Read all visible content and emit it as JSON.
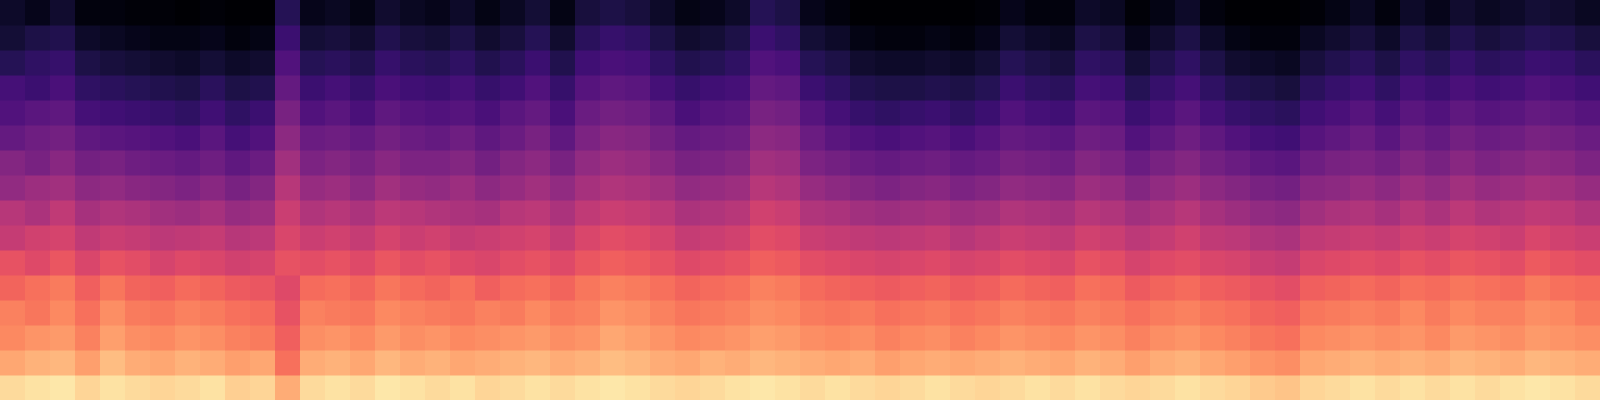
{
  "chart_data": {
    "type": "heatmap",
    "color": "magma",
    "tick_labels": false,
    "zlim": [
      -80,
      0
    ],
    "cells": [
      [
        -6,
        -15,
        -20,
        -21,
        -26,
        -30,
        -37,
        -40,
        -47,
        -50,
        -56,
        -60,
        -62,
        -68,
        -72,
        -74
      ],
      [
        -5,
        -13,
        -18,
        -23,
        -24,
        -32,
        -35,
        -42,
        -45,
        -52,
        -54,
        -58,
        -64,
        -66,
        -70,
        -76
      ],
      [
        -4,
        -12,
        -17,
        -20,
        -22,
        -29,
        -34,
        -38,
        -44,
        -49,
        -53,
        -57,
        -61,
        -65,
        -69,
        -73
      ],
      [
        -7,
        -16,
        -21,
        -24,
        -27,
        -33,
        -38,
        -43,
        -48,
        -53,
        -57,
        -62,
        -66,
        -70,
        -74,
        -78
      ],
      [
        -5,
        -11,
        -16,
        -19,
        -23,
        -30,
        -36,
        -41,
        -47,
        -52,
        -58,
        -63,
        -67,
        -71,
        -75,
        -78
      ],
      [
        -6,
        -14,
        -19,
        -22,
        -26,
        -31,
        -37,
        -42,
        -49,
        -54,
        -59,
        -64,
        -68,
        -72,
        -76,
        -79
      ],
      [
        -7,
        -15,
        -20,
        -23,
        -27,
        -34,
        -39,
        -44,
        -50,
        -55,
        -60,
        -65,
        -69,
        -73,
        -77,
        -79
      ],
      [
        -6,
        -13,
        -18,
        -21,
        -25,
        -32,
        -38,
        -45,
        -51,
        -56,
        -61,
        -66,
        -70,
        -74,
        -77,
        -80
      ],
      [
        -5,
        -14,
        -19,
        -22,
        -26,
        -33,
        -37,
        -43,
        -49,
        -54,
        -58,
        -63,
        -67,
        -72,
        -76,
        -79
      ],
      [
        -8,
        -16,
        -21,
        -24,
        -28,
        -35,
        -40,
        -46,
        -52,
        -57,
        -62,
        -66,
        -70,
        -74,
        -78,
        -80
      ],
      [
        -7,
        -15,
        -22,
        -25,
        -29,
        -34,
        -39,
        -45,
        -50,
        -55,
        -60,
        -64,
        -69,
        -73,
        -77,
        -80
      ],
      [
        -14,
        -24,
        -27,
        -30,
        -32,
        -30,
        -33,
        -36,
        -40,
        -44,
        -48,
        -52,
        -56,
        -60,
        -64,
        -68
      ],
      [
        -6,
        -14,
        -19,
        -21,
        -25,
        -31,
        -36,
        -41,
        -46,
        -51,
        -55,
        -60,
        -64,
        -68,
        -72,
        -76
      ],
      [
        -5,
        -13,
        -18,
        -22,
        -24,
        -30,
        -35,
        -40,
        -45,
        -50,
        -54,
        -58,
        -62,
        -67,
        -71,
        -75
      ],
      [
        -6,
        -15,
        -20,
        -23,
        -26,
        -32,
        -37,
        -42,
        -48,
        -52,
        -56,
        -61,
        -65,
        -69,
        -73,
        -77
      ],
      [
        -4,
        -12,
        -17,
        -20,
        -23,
        -29,
        -34,
        -39,
        -44,
        -49,
        -53,
        -57,
        -61,
        -65,
        -69,
        -73
      ],
      [
        -5,
        -14,
        -19,
        -21,
        -25,
        -31,
        -36,
        -40,
        -46,
        -51,
        -55,
        -59,
        -63,
        -67,
        -71,
        -75
      ],
      [
        -6,
        -13,
        -18,
        -22,
        -26,
        -30,
        -35,
        -41,
        -47,
        -51,
        -56,
        -60,
        -64,
        -68,
        -72,
        -76
      ],
      [
        -5,
        -15,
        -20,
        -23,
        -24,
        -32,
        -37,
        -42,
        -45,
        -50,
        -54,
        -59,
        -62,
        -66,
        -70,
        -74
      ],
      [
        -7,
        -14,
        -19,
        -21,
        -27,
        -33,
        -36,
        -43,
        -48,
        -53,
        -57,
        -61,
        -65,
        -69,
        -73,
        -77
      ],
      [
        -6,
        -13,
        -18,
        -22,
        -25,
        -31,
        -35,
        -40,
        -46,
        -50,
        -55,
        -58,
        -63,
        -67,
        -71,
        -75
      ],
      [
        -5,
        -12,
        -17,
        -20,
        -24,
        -30,
        -34,
        -39,
        -44,
        -48,
        -52,
        -56,
        -60,
        -64,
        -68,
        -72
      ],
      [
        -6,
        -14,
        -19,
        -22,
        -26,
        -32,
        -37,
        -42,
        -47,
        -52,
        -57,
        -61,
        -65,
        -69,
        -73,
        -77
      ],
      [
        -5,
        -13,
        -18,
        -21,
        -23,
        -29,
        -33,
        -38,
        -43,
        -47,
        -51,
        -55,
        -59,
        -63,
        -67,
        -71
      ],
      [
        -4,
        -11,
        -15,
        -18,
        -21,
        -27,
        -31,
        -36,
        -41,
        -45,
        -49,
        -53,
        -57,
        -61,
        -65,
        -70
      ],
      [
        -5,
        -12,
        -16,
        -19,
        -22,
        -28,
        -32,
        -37,
        -42,
        -46,
        -50,
        -54,
        -58,
        -62,
        -66,
        -71
      ],
      [
        -6,
        -14,
        -18,
        -21,
        -24,
        -30,
        -34,
        -39,
        -44,
        -49,
        -53,
        -57,
        -62,
        -66,
        -70,
        -74
      ],
      [
        -7,
        -15,
        -20,
        -23,
        -26,
        -32,
        -37,
        -42,
        -47,
        -52,
        -56,
        -61,
        -65,
        -69,
        -73,
        -77
      ],
      [
        -6,
        -13,
        -19,
        -22,
        -25,
        -31,
        -36,
        -41,
        -46,
        -51,
        -55,
        -59,
        -63,
        -68,
        -72,
        -76
      ],
      [
        -5,
        -14,
        -18,
        -21,
        -24,
        -30,
        -35,
        -40,
        -45,
        -50,
        -54,
        -58,
        -62,
        -66,
        -70,
        -74
      ],
      [
        -4,
        -12,
        -16,
        -19,
        -21,
        -27,
        -31,
        -35,
        -40,
        -44,
        -48,
        -52,
        -56,
        -60,
        -64,
        -68
      ],
      [
        -5,
        -13,
        -17,
        -20,
        -22,
        -28,
        -32,
        -36,
        -41,
        -45,
        -49,
        -53,
        -57,
        -61,
        -66,
        -70
      ],
      [
        -6,
        -14,
        -19,
        -22,
        -25,
        -31,
        -36,
        -41,
        -46,
        -51,
        -55,
        -59,
        -64,
        -68,
        -72,
        -76
      ],
      [
        -5,
        -15,
        -20,
        -23,
        -26,
        -32,
        -37,
        -42,
        -48,
        -53,
        -58,
        -62,
        -66,
        -70,
        -74,
        -78
      ],
      [
        -6,
        -14,
        -19,
        -22,
        -27,
        -33,
        -38,
        -44,
        -50,
        -55,
        -60,
        -65,
        -69,
        -73,
        -77,
        -80
      ],
      [
        -7,
        -16,
        -21,
        -24,
        -28,
        -34,
        -39,
        -45,
        -51,
        -56,
        -61,
        -66,
        -70,
        -74,
        -78,
        -80
      ],
      [
        -6,
        -15,
        -20,
        -23,
        -27,
        -33,
        -38,
        -44,
        -50,
        -55,
        -60,
        -65,
        -70,
        -74,
        -78,
        -80
      ],
      [
        -5,
        -14,
        -19,
        -22,
        -26,
        -32,
        -37,
        -43,
        -49,
        -54,
        -59,
        -64,
        -69,
        -73,
        -77,
        -80
      ],
      [
        -6,
        -15,
        -21,
        -24,
        -28,
        -34,
        -40,
        -45,
        -51,
        -56,
        -61,
        -66,
        -70,
        -74,
        -78,
        -80
      ],
      [
        -7,
        -14,
        -20,
        -23,
        -27,
        -33,
        -38,
        -44,
        -50,
        -55,
        -59,
        -64,
        -68,
        -72,
        -76,
        -79
      ],
      [
        -6,
        -13,
        -18,
        -21,
        -25,
        -31,
        -36,
        -41,
        -47,
        -52,
        -56,
        -60,
        -64,
        -68,
        -72,
        -76
      ],
      [
        -5,
        -14,
        -19,
        -22,
        -26,
        -32,
        -37,
        -42,
        -48,
        -53,
        -57,
        -62,
        -66,
        -70,
        -74,
        -78
      ],
      [
        -6,
        -15,
        -20,
        -23,
        -27,
        -33,
        -38,
        -43,
        -49,
        -54,
        -58,
        -63,
        -67,
        -71,
        -75,
        -78
      ],
      [
        -5,
        -13,
        -18,
        -21,
        -24,
        -30,
        -35,
        -40,
        -45,
        -50,
        -54,
        -58,
        -62,
        -66,
        -70,
        -74
      ],
      [
        -6,
        -14,
        -19,
        -22,
        -25,
        -31,
        -36,
        -41,
        -46,
        -51,
        -55,
        -59,
        -63,
        -67,
        -71,
        -75
      ],
      [
        -7,
        -16,
        -21,
        -24,
        -28,
        -34,
        -39,
        -44,
        -50,
        -55,
        -60,
        -64,
        -68,
        -72,
        -76,
        -79
      ],
      [
        -6,
        -14,
        -19,
        -22,
        -26,
        -32,
        -37,
        -42,
        -47,
        -52,
        -57,
        -61,
        -65,
        -69,
        -73,
        -77
      ],
      [
        -5,
        -13,
        -18,
        -21,
        -25,
        -31,
        -35,
        -40,
        -45,
        -50,
        -54,
        -58,
        -62,
        -66,
        -70,
        -74
      ],
      [
        -6,
        -15,
        -20,
        -23,
        -27,
        -33,
        -38,
        -43,
        -48,
        -53,
        -57,
        -62,
        -66,
        -70,
        -74,
        -78
      ],
      [
        -7,
        -16,
        -21,
        -24,
        -28,
        -34,
        -39,
        -45,
        -50,
        -55,
        -60,
        -65,
        -69,
        -73,
        -77,
        -80
      ],
      [
        -9,
        -18,
        -23,
        -26,
        -30,
        -36,
        -41,
        -47,
        -52,
        -57,
        -62,
        -66,
        -70,
        -74,
        -78,
        -80
      ],
      [
        -10,
        -19,
        -24,
        -27,
        -31,
        -37,
        -42,
        -48,
        -53,
        -58,
        -63,
        -67,
        -71,
        -75,
        -78,
        -80
      ],
      [
        -7,
        -15,
        -20,
        -23,
        -27,
        -33,
        -38,
        -44,
        -49,
        -54,
        -59,
        -63,
        -67,
        -71,
        -75,
        -79
      ],
      [
        -6,
        -14,
        -19,
        -22,
        -26,
        -32,
        -37,
        -42,
        -48,
        -52,
        -57,
        -61,
        -65,
        -69,
        -73,
        -77
      ],
      [
        -5,
        -13,
        -18,
        -21,
        -25,
        -31,
        -36,
        -41,
        -46,
        -51,
        -55,
        -59,
        -63,
        -67,
        -71,
        -75
      ],
      [
        -6,
        -14,
        -19,
        -22,
        -26,
        -32,
        -37,
        -43,
        -48,
        -53,
        -58,
        -62,
        -66,
        -70,
        -74,
        -78
      ],
      [
        -5,
        -13,
        -18,
        -20,
        -24,
        -30,
        -35,
        -40,
        -45,
        -50,
        -54,
        -58,
        -62,
        -66,
        -70,
        -74
      ],
      [
        -6,
        -14,
        -20,
        -22,
        -25,
        -31,
        -36,
        -42,
        -47,
        -52,
        -56,
        -60,
        -64,
        -68,
        -72,
        -76
      ],
      [
        -5,
        -12,
        -17,
        -20,
        -23,
        -29,
        -34,
        -39,
        -44,
        -49,
        -53,
        -57,
        -61,
        -65,
        -69,
        -73
      ],
      [
        -6,
        -13,
        -18,
        -21,
        -24,
        -30,
        -35,
        -41,
        -46,
        -51,
        -55,
        -59,
        -63,
        -67,
        -71,
        -75
      ],
      [
        -5,
        -14,
        -19,
        -21,
        -25,
        -31,
        -36,
        -40,
        -45,
        -50,
        -54,
        -58,
        -62,
        -66,
        -70,
        -74
      ],
      [
        -4,
        -12,
        -17,
        -19,
        -22,
        -28,
        -33,
        -38,
        -43,
        -48,
        -52,
        -56,
        -60,
        -64,
        -68,
        -72
      ],
      [
        -5,
        -13,
        -18,
        -20,
        -24,
        -30,
        -35,
        -39,
        -44,
        -49,
        -53,
        -57,
        -61,
        -65,
        -69,
        -73
      ],
      [
        -6,
        -14,
        -19,
        -22,
        -25,
        -31,
        -36,
        -41,
        -46,
        -51,
        -55,
        -59,
        -63,
        -67,
        -71,
        -75
      ]
    ]
  }
}
